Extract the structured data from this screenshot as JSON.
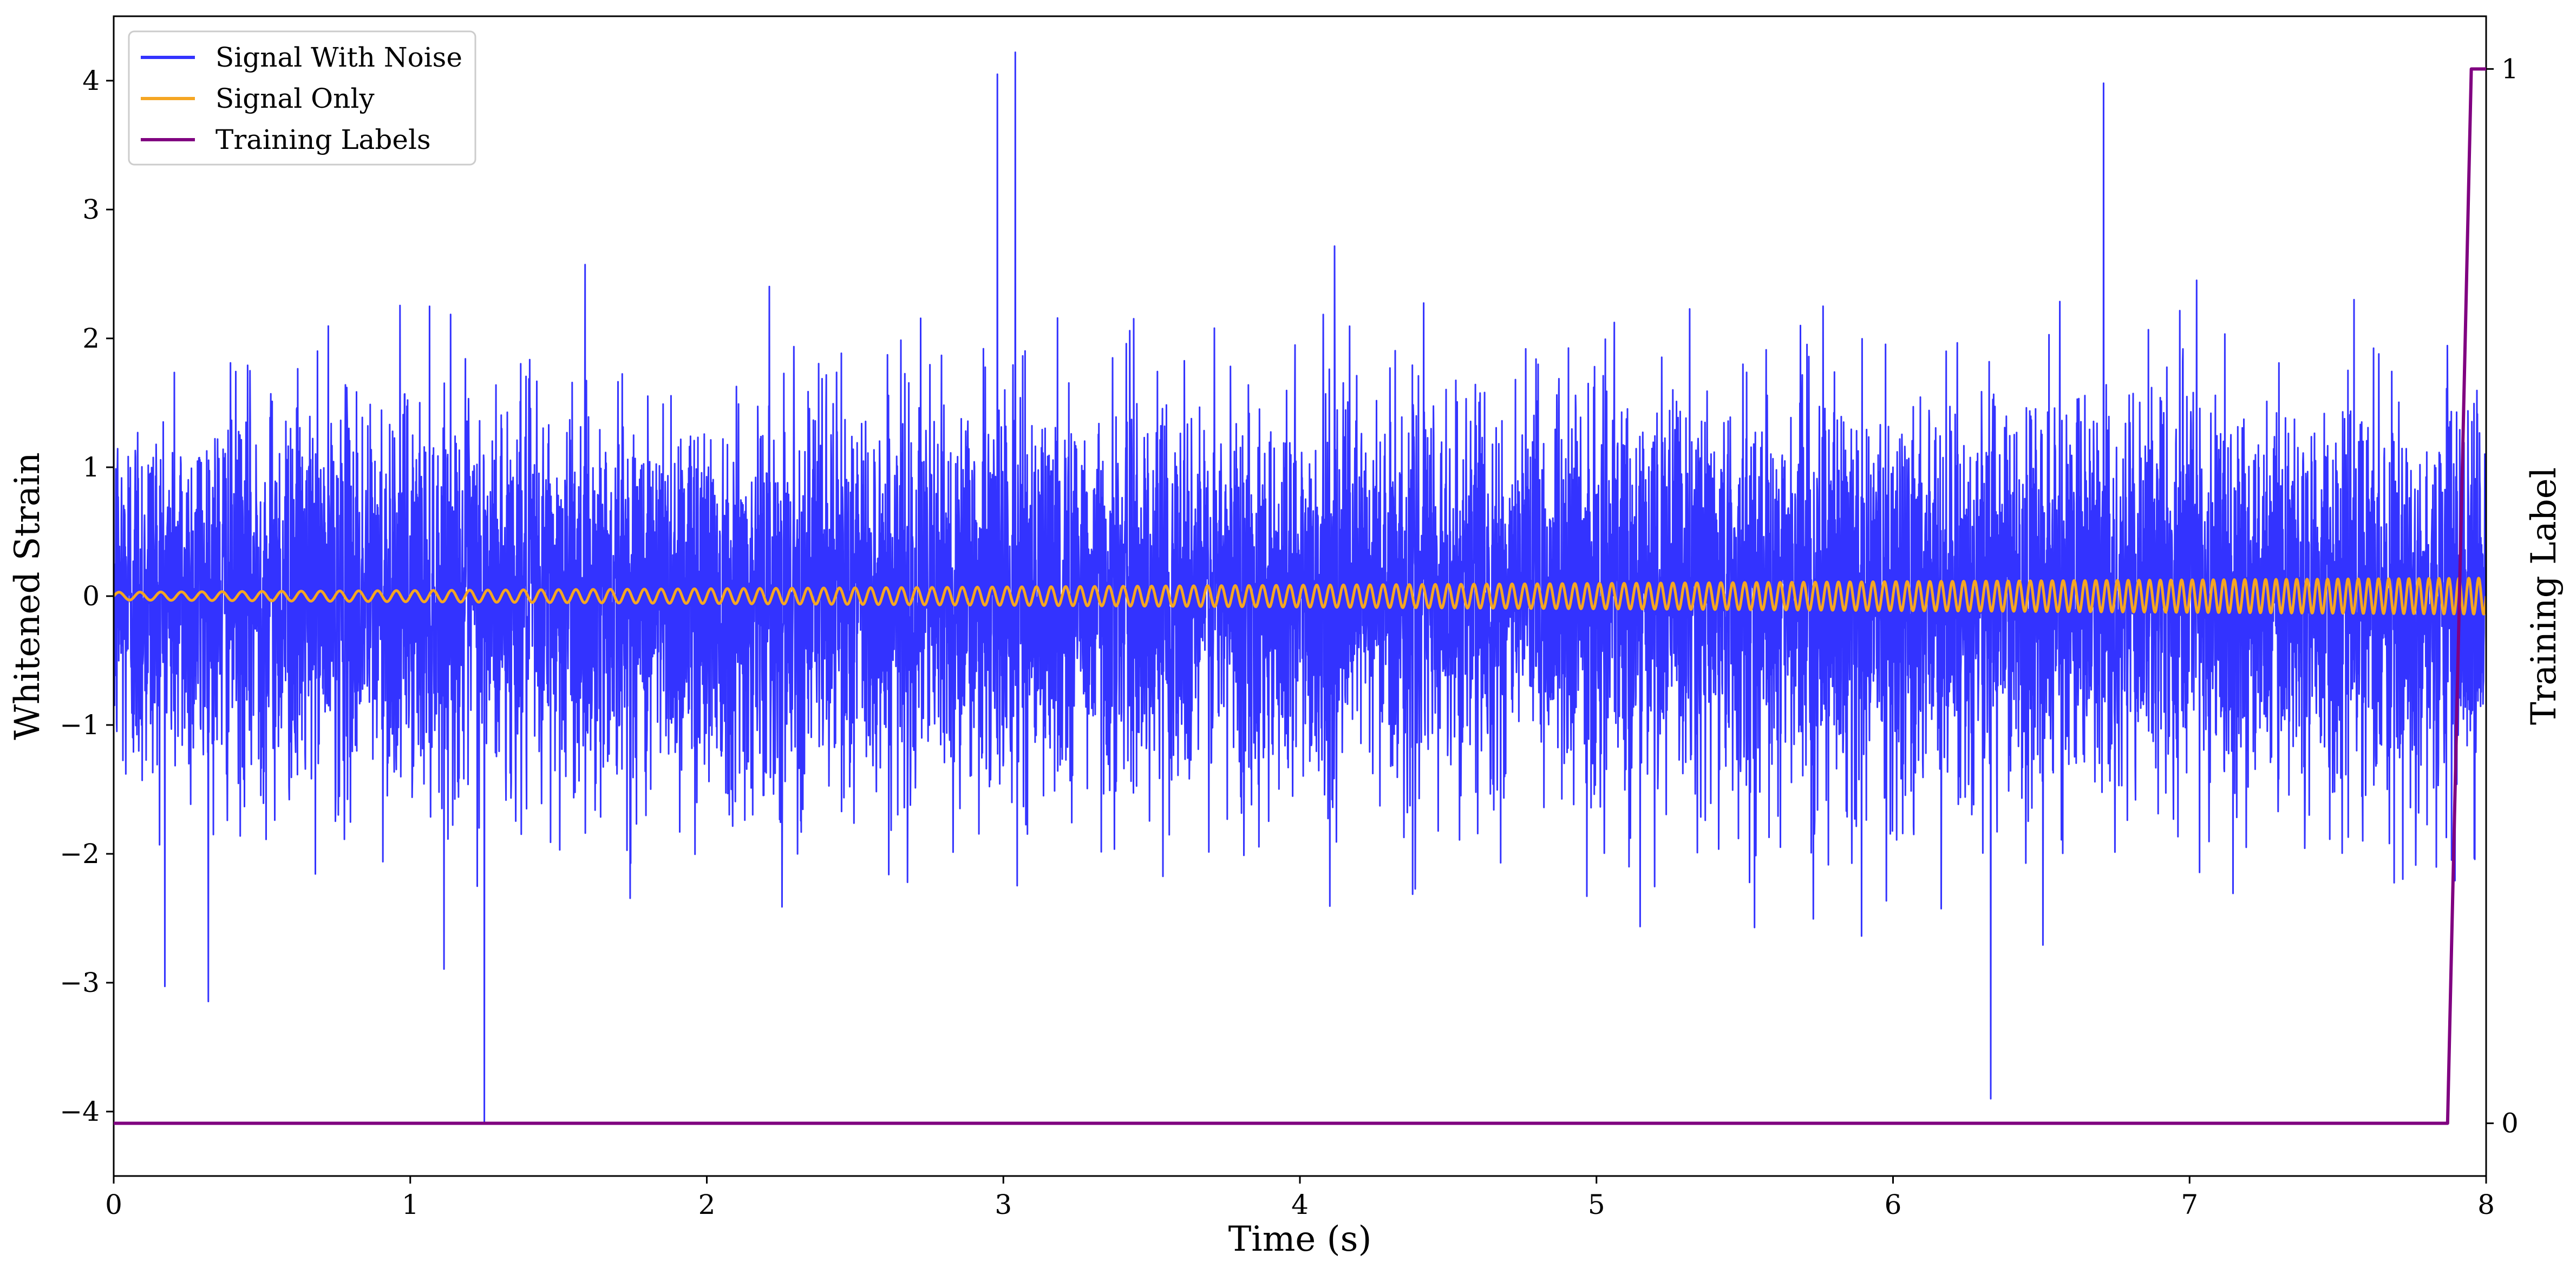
{
  "chart_data": {
    "type": "line",
    "xlabel": "Time (s)",
    "ylabel": "Whitened Strain",
    "y2label": "Training Label",
    "xlim": [
      0,
      8
    ],
    "ylim": [
      -4.5,
      4.5
    ],
    "y2lim": [
      -0.05,
      1.05
    ],
    "xticks": [
      0,
      1,
      2,
      3,
      4,
      5,
      6,
      7,
      8
    ],
    "xtick_labels": [
      "0",
      "1",
      "2",
      "3",
      "4",
      "5",
      "6",
      "7",
      "8"
    ],
    "yticks": [
      -4,
      -3,
      -2,
      -1,
      0,
      1,
      2,
      3,
      4
    ],
    "ytick_labels": [
      "−4",
      "−3",
      "−2",
      "−1",
      "0",
      "1",
      "2",
      "3",
      "4"
    ],
    "y2ticks": [
      0,
      1
    ],
    "y2tick_labels": [
      "0",
      "1"
    ],
    "grid": false,
    "legend_placement": "top-left",
    "series": [
      {
        "name": "Signal With Noise",
        "axis": "left",
        "color": "#3333ff",
        "description_stats": {
          "approx_std": 0.75,
          "min": -4.08,
          "max": 4.22
        },
        "x": [
          0.0,
          0.5,
          1.0,
          1.24,
          1.25,
          1.26,
          1.5,
          2.0,
          2.5,
          2.98,
          3.04,
          3.5,
          4.0,
          4.5,
          5.0,
          5.5,
          6.0,
          6.33,
          6.5,
          6.71,
          7.0,
          7.5,
          8.0
        ],
        "y": [
          0.2,
          -0.3,
          0.1,
          -0.2,
          -4.08,
          0.3,
          -0.1,
          0.2,
          -0.4,
          4.05,
          4.22,
          0.1,
          -0.2,
          0.3,
          -0.1,
          0.2,
          -0.3,
          -3.9,
          0.1,
          3.98,
          -0.2,
          0.1,
          0.0
        ]
      },
      {
        "name": "Signal Only",
        "axis": "left",
        "color": "#f5a623",
        "model": "chirp",
        "amplitude_start": 0.03,
        "amplitude_end": 0.14,
        "freq_start_hz": 14,
        "freq_end_hz": 30,
        "x_range": [
          0,
          8
        ]
      },
      {
        "name": "Training Labels",
        "axis": "right",
        "color": "#800080",
        "x": [
          0.0,
          7.87,
          7.95,
          8.0
        ],
        "y": [
          0,
          0,
          1,
          1
        ]
      }
    ]
  }
}
